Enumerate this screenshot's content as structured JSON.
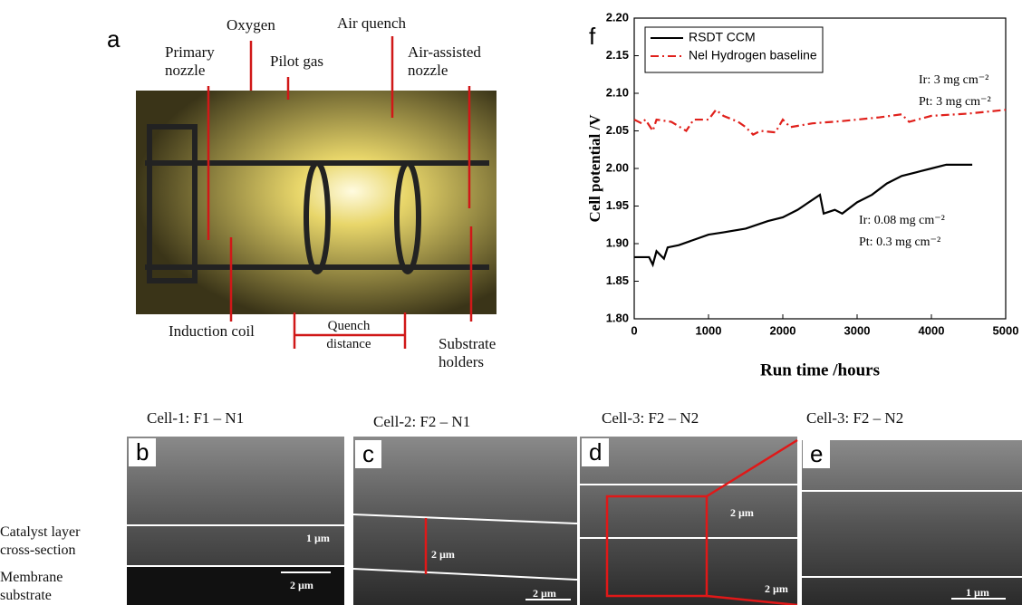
{
  "chart_data": {
    "type": "line",
    "panel_letter": "f",
    "xlabel": "Run time /hours",
    "ylabel": "Cell potential /V",
    "xlim": [
      0,
      5000
    ],
    "xticks": [
      0,
      1000,
      2000,
      3000,
      4000,
      5000
    ],
    "ylim": [
      1.8,
      2.2
    ],
    "yticks": [
      {
        "value": 1.8,
        "label": "1.80"
      },
      1.85,
      {
        "value": 1.9,
        "label": "1.90"
      },
      1.95,
      {
        "value": 2,
        "label": "2.00"
      },
      2.05,
      {
        "value": 2.1,
        "label": "2.10"
      },
      2.15,
      {
        "value": 2.2,
        "label": "2.20"
      }
    ],
    "legend": "upper left",
    "series": [
      {
        "name": "RSDT CCM",
        "color": "#000000",
        "dash": "solid",
        "x": [
          0,
          200,
          250,
          300,
          400,
          450,
          600,
          800,
          1000,
          1200,
          1500,
          1800,
          2000,
          2200,
          2500,
          2550,
          2700,
          2800,
          3000,
          3200,
          3400,
          3600,
          3800,
          4000,
          4200,
          4400,
          4550
        ],
        "values": [
          1.882,
          1.882,
          1.872,
          1.89,
          1.88,
          1.895,
          1.898,
          1.905,
          1.912,
          1.915,
          1.92,
          1.93,
          1.935,
          1.945,
          1.965,
          1.94,
          1.945,
          1.94,
          1.955,
          1.965,
          1.98,
          1.99,
          1.995,
          2.0,
          2.005,
          2.005,
          2.005
        ]
      },
      {
        "name": "Nel Hydrogen baseline",
        "color": "#e0201b",
        "dash": "dashdot",
        "x": [
          0,
          100,
          150,
          250,
          300,
          500,
          700,
          800,
          1000,
          1100,
          1200,
          1400,
          1500,
          1600,
          1700,
          1900,
          2000,
          2100,
          2400,
          2800,
          3000,
          3300,
          3600,
          3700,
          4000,
          4500,
          5000
        ],
        "values": [
          2.065,
          2.06,
          2.065,
          2.05,
          2.065,
          2.062,
          2.05,
          2.065,
          2.065,
          2.078,
          2.07,
          2.062,
          2.055,
          2.045,
          2.05,
          2.048,
          2.065,
          2.055,
          2.06,
          2.063,
          2.065,
          2.068,
          2.072,
          2.062,
          2.07,
          2.073,
          2.078
        ]
      }
    ],
    "annotations": [
      "Ir: 3 mg cm⁻²",
      "Pt: 3 mg cm⁻²",
      "Ir: 0.08 mg cm⁻²",
      "Pt: 0.3 mg cm⁻²"
    ]
  },
  "panels": {
    "a": {
      "letter": "a",
      "oxygen": "Oxygen",
      "air_quench": "Air quench",
      "primary_nozzle": "Primary nozzle",
      "pilot_gas": "Pilot gas",
      "air_assisted_nozzle": "Air-assisted nozzle",
      "induction_coil": "Induction coil",
      "quench_distance": "Quench distance",
      "substrate_holders": "Substrate holders"
    },
    "b": {
      "letter": "b",
      "title": "Cell-1: F1 – N1",
      "layer_label": "1 µm",
      "scale_bar": "2 µm"
    },
    "c": {
      "letter": "c",
      "title": "Cell-2:  F2 – N1",
      "layer_label": "2 µm",
      "scale_bar": "2 µm"
    },
    "d": {
      "letter": "d",
      "title": "Cell-3: F2 – N2",
      "layer_label": "2 µm",
      "scale_bar": "2 µm"
    },
    "e": {
      "letter": "e",
      "title": "Cell-3: F2 – N2",
      "scale_bar": "1 µm"
    },
    "side_labels": [
      "Catalyst layer cross-section",
      "Membrane substrate"
    ]
  }
}
